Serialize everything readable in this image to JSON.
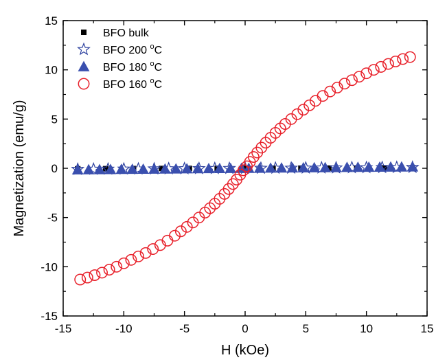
{
  "chart_data": {
    "type": "scatter",
    "xlabel": "H (kOe)",
    "ylabel": "Magnetization (emu/g)",
    "xlim": [
      -15,
      15
    ],
    "ylim": [
      -15,
      15
    ],
    "xticks": [
      "-15",
      "-10",
      "-5",
      "0",
      "5",
      "10",
      "15"
    ],
    "yticks": [
      "-15",
      "-10",
      "-5",
      "0",
      "5",
      "10",
      "15"
    ],
    "legend_position": "top-left",
    "grid": false,
    "series": [
      {
        "name": "BFO bulk",
        "label_main": "BFO bulk",
        "label_sup": "",
        "label_tail": "",
        "marker": "square-filled",
        "color": "#000000",
        "x": [
          -13.8,
          -11.5,
          -9.2,
          -6.9,
          -4.6,
          -2.3,
          0,
          2.3,
          4.6,
          6.9,
          9.2,
          11.5,
          13.8
        ],
        "y": [
          -0.05,
          -0.04,
          -0.03,
          -0.02,
          -0.015,
          -0.01,
          0,
          0.01,
          0.015,
          0.02,
          0.03,
          0.04,
          0.05
        ]
      },
      {
        "name": "BFO 200 oC",
        "label_main": "BFO 200 ",
        "label_sup": "o",
        "label_tail": "C",
        "marker": "star-open",
        "color": "#2b3f9e",
        "x": [
          -13.8,
          -12.5,
          -11.3,
          -10,
          -8.8,
          -7.5,
          -6.3,
          -5,
          -3.8,
          -2.5,
          -1.3,
          0,
          1.3,
          2.5,
          3.8,
          5,
          6.3,
          7.5,
          8.8,
          10,
          11.3,
          12.5,
          13.8
        ],
        "y": [
          -0.1,
          -0.09,
          -0.08,
          -0.07,
          -0.06,
          -0.05,
          -0.04,
          -0.03,
          -0.02,
          -0.015,
          -0.01,
          0,
          0.01,
          0.015,
          0.02,
          0.03,
          0.04,
          0.05,
          0.06,
          0.07,
          0.08,
          0.09,
          0.1
        ]
      },
      {
        "name": "BFO 180 oC",
        "label_main": "BFO 180 ",
        "label_sup": "o",
        "label_tail": "C",
        "marker": "triangle-filled",
        "color": "#3a4fae",
        "x": [
          -13.8,
          -12.9,
          -12,
          -11.1,
          -10.2,
          -9.3,
          -8.4,
          -7.5,
          -6.6,
          -5.7,
          -4.8,
          -3.9,
          -3,
          -2.1,
          -1.2,
          -0.3,
          0.3,
          1.2,
          2.1,
          3,
          3.9,
          4.8,
          5.7,
          6.6,
          7.5,
          8.4,
          9.3,
          10.2,
          11.1,
          12,
          12.9,
          13.8
        ],
        "y": [
          -0.15,
          -0.14,
          -0.13,
          -0.12,
          -0.11,
          -0.1,
          -0.09,
          -0.08,
          -0.07,
          -0.06,
          -0.05,
          -0.04,
          -0.03,
          -0.02,
          -0.01,
          0,
          0,
          0.01,
          0.02,
          0.03,
          0.04,
          0.05,
          0.06,
          0.07,
          0.08,
          0.09,
          0.1,
          0.11,
          0.12,
          0.13,
          0.14,
          0.15
        ]
      },
      {
        "name": "BFO 160 oC",
        "label_main": "BFO 160 ",
        "label_sup": "o",
        "label_tail": "C",
        "marker": "circle-open",
        "color": "#e8202a",
        "x": [
          -13.6,
          -13.0,
          -12.4,
          -11.8,
          -11.2,
          -10.6,
          -10.0,
          -9.4,
          -8.8,
          -8.2,
          -7.6,
          -7.0,
          -6.4,
          -5.8,
          -5.3,
          -4.8,
          -4.3,
          -3.8,
          -3.3,
          -2.9,
          -2.5,
          -2.1,
          -1.7,
          -1.35,
          -1.0,
          -0.7,
          -0.4,
          -0.15,
          0.15,
          0.4,
          0.7,
          1.0,
          1.35,
          1.7,
          2.1,
          2.5,
          2.9,
          3.3,
          3.8,
          4.3,
          4.8,
          5.3,
          5.8,
          6.4,
          7.0,
          7.6,
          8.2,
          8.8,
          9.4,
          10.0,
          10.6,
          11.2,
          11.8,
          12.4,
          13.0,
          13.6
        ],
        "y": [
          -11.3,
          -11.1,
          -10.85,
          -10.6,
          -10.3,
          -10.0,
          -9.65,
          -9.3,
          -8.95,
          -8.6,
          -8.2,
          -7.8,
          -7.35,
          -6.85,
          -6.4,
          -5.95,
          -5.5,
          -5.0,
          -4.5,
          -4.05,
          -3.6,
          -3.1,
          -2.6,
          -2.1,
          -1.6,
          -1.15,
          -0.65,
          -0.2,
          0.2,
          0.65,
          1.15,
          1.6,
          2.1,
          2.6,
          3.1,
          3.6,
          4.05,
          4.5,
          5.0,
          5.5,
          5.95,
          6.4,
          6.85,
          7.35,
          7.8,
          8.2,
          8.6,
          8.95,
          9.3,
          9.65,
          10.0,
          10.3,
          10.6,
          10.85,
          11.1,
          11.3
        ]
      }
    ]
  }
}
